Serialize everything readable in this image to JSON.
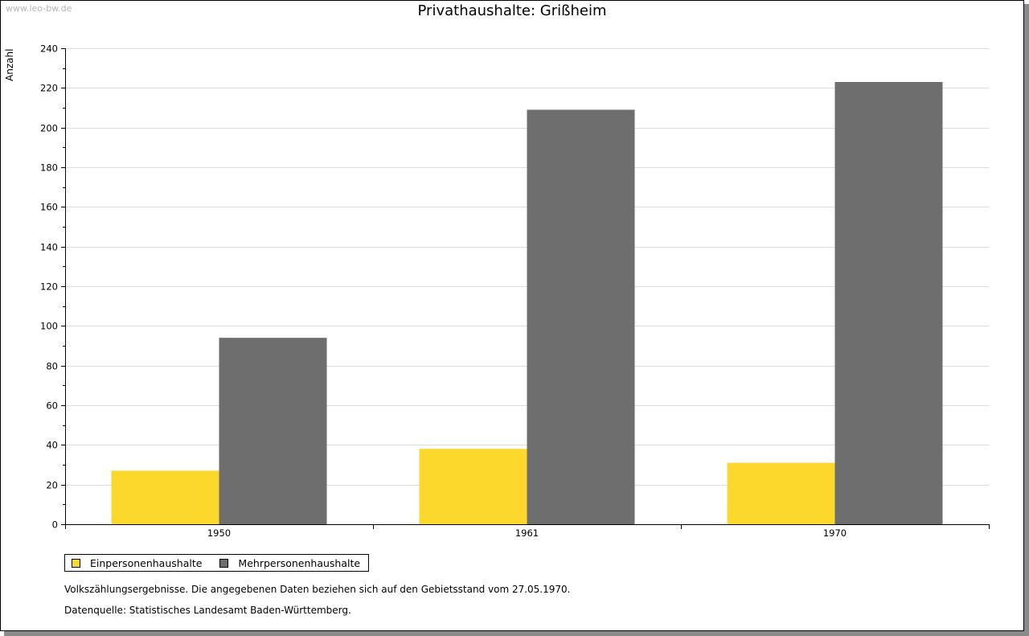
{
  "watermark": "www.leo-bw.de",
  "chart_data": {
    "type": "bar",
    "title": "Privathaushalte: Grißheim",
    "xlabel": "",
    "ylabel": "Anzahl",
    "ylim": [
      0,
      240
    ],
    "yticks": [
      0,
      20,
      40,
      60,
      80,
      100,
      120,
      140,
      160,
      180,
      200,
      220,
      240
    ],
    "grid": true,
    "legend_position": "bottom-left",
    "categories": [
      "1950",
      "1961",
      "1970"
    ],
    "series": [
      {
        "name": "Einpersonenhaushalte",
        "color": "#fcd72c",
        "values": [
          27,
          38,
          31
        ]
      },
      {
        "name": "Mehrpersonenhaushalte",
        "color": "#6e6e6e",
        "values": [
          94,
          209,
          223
        ]
      }
    ]
  },
  "notes": {
    "line1": "Volkszählungsergebnisse. Die angegebenen Daten beziehen sich auf den Gebietsstand vom 27.05.1970.",
    "line2": "Datenquelle: Statistisches Landesamt Baden-Württemberg."
  }
}
